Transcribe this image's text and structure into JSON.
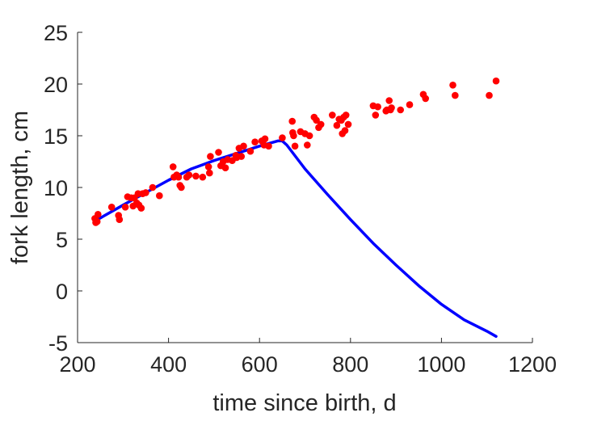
{
  "chart_data": {
    "type": "scatter",
    "title": "",
    "xlabel": "time since birth, d",
    "ylabel": "fork length, cm",
    "xlim": [
      200,
      1200
    ],
    "ylim": [
      -5,
      25
    ],
    "xticks": [
      200,
      400,
      600,
      800,
      1000,
      1200
    ],
    "yticks": [
      -5,
      0,
      5,
      10,
      15,
      20,
      25
    ],
    "grid": false,
    "legend": "none",
    "series": [
      {
        "type": "scatter",
        "color": "#ff0000",
        "x": [
          238,
          240,
          243,
          245,
          275,
          290,
          292,
          305,
          310,
          318,
          322,
          325,
          330,
          333,
          335,
          340,
          343,
          350,
          365,
          380,
          410,
          412,
          418,
          422,
          425,
          428,
          440,
          445,
          460,
          475,
          488,
          490,
          492,
          510,
          515,
          520,
          525,
          530,
          540,
          548,
          550,
          555,
          560,
          565,
          580,
          590,
          605,
          610,
          612,
          620,
          650,
          672,
          673,
          675,
          678,
          690,
          700,
          705,
          710,
          720,
          725,
          730,
          735,
          760,
          770,
          775,
          780,
          782,
          785,
          788,
          790,
          795,
          850,
          855,
          860,
          878,
          880,
          885,
          888,
          890,
          910,
          930,
          960,
          965,
          1025,
          1030,
          1105,
          1120
        ],
        "y": [
          7.0,
          6.6,
          6.7,
          7.4,
          8.1,
          7.3,
          6.9,
          8.1,
          9.1,
          9.0,
          8.2,
          9.0,
          8.5,
          9.4,
          8.3,
          8.0,
          9.4,
          9.5,
          10.0,
          9.2,
          12.0,
          11.0,
          11.2,
          11.0,
          10.2,
          10.0,
          11.0,
          11.2,
          11.1,
          11.0,
          12.0,
          11.4,
          13.0,
          13.4,
          12.1,
          12.5,
          11.9,
          12.7,
          12.6,
          13.1,
          12.9,
          13.8,
          13.0,
          14.0,
          13.5,
          14.4,
          14.5,
          14.1,
          14.7,
          14.0,
          14.8,
          16.4,
          15.3,
          15.0,
          14.0,
          15.4,
          15.2,
          14.1,
          15.0,
          16.8,
          16.5,
          15.8,
          16.1,
          17.0,
          16.0,
          16.6,
          16.5,
          15.2,
          16.8,
          15.5,
          17.0,
          16.1,
          17.9,
          17.0,
          17.8,
          17.4,
          17.5,
          18.4,
          17.5,
          17.7,
          17.5,
          18.0,
          19.0,
          18.6,
          19.9,
          18.9,
          18.9,
          20.3
        ]
      },
      {
        "type": "line",
        "color": "#0000ff",
        "x": [
          240,
          300,
          350,
          400,
          450,
          500,
          550,
          600,
          640,
          650,
          660,
          700,
          750,
          800,
          850,
          900,
          950,
          1000,
          1050,
          1100,
          1120
        ],
        "y": [
          6.8,
          8.3,
          9.5,
          10.7,
          11.8,
          12.6,
          13.3,
          14.0,
          14.5,
          14.5,
          14.1,
          11.8,
          9.3,
          6.9,
          4.6,
          2.5,
          0.5,
          -1.3,
          -2.8,
          -3.9,
          -4.4
        ]
      }
    ]
  }
}
